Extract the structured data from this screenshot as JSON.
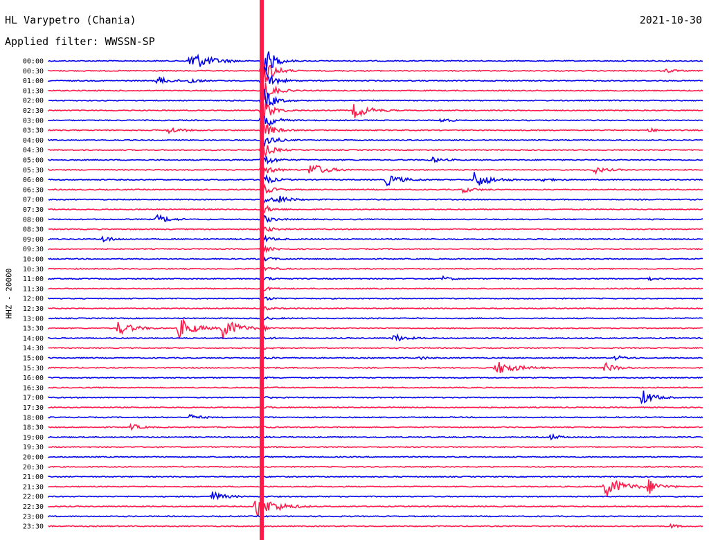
{
  "header": {
    "station": "HL Varypetro (Chania)",
    "filter": "Applied filter: WWSSN-SP",
    "date": "2021-10-30"
  },
  "axis": {
    "ylabel": "HHZ - 20000"
  },
  "colors": {
    "trace_a": "#0000ee",
    "trace_b": "#ff1a4a",
    "background": "#ffffff"
  },
  "chart_data": {
    "type": "helicorder",
    "title": "HL Varypetro (Chania)",
    "subtitle": "Applied filter: WWSSN-SP",
    "date": "2021-10-30",
    "ylabel": "HHZ - 20000",
    "row_minutes": 30,
    "rows": [
      "00:00",
      "00:30",
      "01:00",
      "01:30",
      "02:00",
      "02:30",
      "03:00",
      "03:30",
      "04:00",
      "04:30",
      "05:00",
      "05:30",
      "06:00",
      "06:30",
      "07:00",
      "07:30",
      "08:00",
      "08:30",
      "09:00",
      "09:30",
      "10:00",
      "10:30",
      "11:00",
      "11:30",
      "12:00",
      "12:30",
      "13:00",
      "13:30",
      "14:00",
      "14:30",
      "15:00",
      "15:30",
      "16:00",
      "16:30",
      "17:00",
      "17:30",
      "18:00",
      "18:30",
      "19:00",
      "19:30",
      "20:00",
      "20:30",
      "21:00",
      "21:30",
      "22:00",
      "22:30",
      "23:00",
      "23:30"
    ],
    "trace_colors": [
      "#0000ee",
      "#ff1a4a"
    ],
    "events": [
      {
        "row": "00:00",
        "minute": 6.5,
        "amplitude": 3.0,
        "duration_min": 2.5
      },
      {
        "row": "00:30",
        "minute": 28.3,
        "amplitude": 0.6,
        "duration_min": 1.0
      },
      {
        "row": "01:00",
        "minute": 5.0,
        "amplitude": 1.2,
        "duration_min": 1.5
      },
      {
        "row": "01:00",
        "minute": 6.5,
        "amplitude": 1.0,
        "duration_min": 1.0
      },
      {
        "row": "02:30",
        "minute": 14.0,
        "amplitude": 2.2,
        "duration_min": 2.0
      },
      {
        "row": "03:00",
        "minute": 18.0,
        "amplitude": 0.7,
        "duration_min": 1.0
      },
      {
        "row": "03:30",
        "minute": 5.5,
        "amplitude": 1.0,
        "duration_min": 1.5
      },
      {
        "row": "03:30",
        "minute": 27.5,
        "amplitude": 0.6,
        "duration_min": 1.0
      },
      {
        "row": "05:00",
        "minute": 17.5,
        "amplitude": 0.8,
        "duration_min": 1.5
      },
      {
        "row": "05:30",
        "minute": 12.0,
        "amplitude": 2.0,
        "duration_min": 2.0
      },
      {
        "row": "05:30",
        "minute": 25.0,
        "amplitude": 1.0,
        "duration_min": 1.5
      },
      {
        "row": "06:00",
        "minute": 15.5,
        "amplitude": 1.6,
        "duration_min": 2.0
      },
      {
        "row": "06:00",
        "minute": 19.5,
        "amplitude": 2.5,
        "duration_min": 2.0
      },
      {
        "row": "06:00",
        "minute": 22.5,
        "amplitude": 0.6,
        "duration_min": 1.5
      },
      {
        "row": "06:30",
        "minute": 19.0,
        "amplitude": 0.8,
        "duration_min": 1.5
      },
      {
        "row": "07:00",
        "minute": 10.5,
        "amplitude": 1.0,
        "duration_min": 1.5
      },
      {
        "row": "08:00",
        "minute": 5.0,
        "amplitude": 1.3,
        "duration_min": 1.5
      },
      {
        "row": "09:00",
        "minute": 2.5,
        "amplitude": 1.0,
        "duration_min": 1.2
      },
      {
        "row": "11:00",
        "minute": 18.0,
        "amplitude": 0.7,
        "duration_min": 1.2
      },
      {
        "row": "11:00",
        "minute": 27.5,
        "amplitude": 0.5,
        "duration_min": 1.0
      },
      {
        "row": "13:30",
        "minute": 3.2,
        "amplitude": 2.0,
        "duration_min": 2.0
      },
      {
        "row": "13:30",
        "minute": 6.0,
        "amplitude": 3.0,
        "duration_min": 2.0
      },
      {
        "row": "13:30",
        "minute": 8.0,
        "amplitude": 3.2,
        "duration_min": 2.0
      },
      {
        "row": "14:00",
        "minute": 15.8,
        "amplitude": 1.2,
        "duration_min": 1.5
      },
      {
        "row": "15:00",
        "minute": 17.0,
        "amplitude": 0.5,
        "duration_min": 1.0
      },
      {
        "row": "15:00",
        "minute": 26.0,
        "amplitude": 0.7,
        "duration_min": 1.2
      },
      {
        "row": "15:30",
        "minute": 20.5,
        "amplitude": 2.0,
        "duration_min": 2.5
      },
      {
        "row": "15:30",
        "minute": 25.5,
        "amplitude": 1.4,
        "duration_min": 1.5
      },
      {
        "row": "17:00",
        "minute": 27.2,
        "amplitude": 2.2,
        "duration_min": 1.5
      },
      {
        "row": "18:00",
        "minute": 6.5,
        "amplitude": 0.9,
        "duration_min": 1.2
      },
      {
        "row": "18:30",
        "minute": 3.8,
        "amplitude": 0.9,
        "duration_min": 1.2
      },
      {
        "row": "19:00",
        "minute": 23.0,
        "amplitude": 0.8,
        "duration_min": 1.2
      },
      {
        "row": "21:30",
        "minute": 25.5,
        "amplitude": 3.0,
        "duration_min": 2.5
      },
      {
        "row": "21:30",
        "minute": 27.5,
        "amplitude": 2.0,
        "duration_min": 1.5
      },
      {
        "row": "22:00",
        "minute": 7.5,
        "amplitude": 1.5,
        "duration_min": 1.5
      },
      {
        "row": "22:30",
        "minute": 9.5,
        "amplitude": 3.5,
        "duration_min": 2.5
      },
      {
        "row": "23:30",
        "minute": 28.5,
        "amplitude": 0.6,
        "duration_min": 1.0
      }
    ],
    "large_event": {
      "start_row": "00:00",
      "minute": 9.8,
      "peak_amplitude": 6.0
    }
  }
}
